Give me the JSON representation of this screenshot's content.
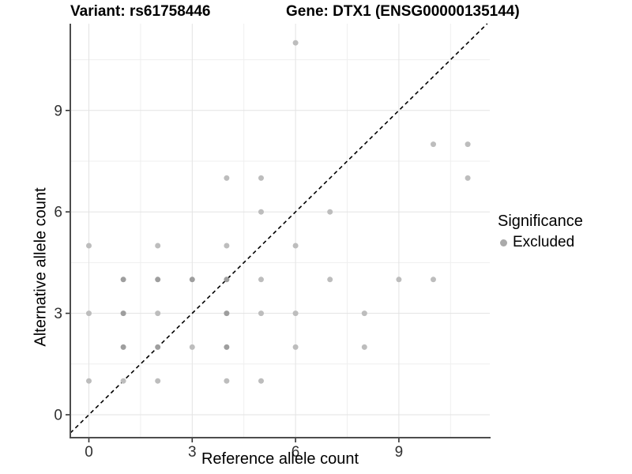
{
  "chart_data": {
    "type": "scatter",
    "title_left": "Variant: rs61758446",
    "title_right": "Gene: DTX1 (ENSG00000135144)",
    "xlabel": "Reference allele count",
    "ylabel": "Alternative allele count",
    "x_ticks": [
      0,
      3,
      6,
      9
    ],
    "y_ticks": [
      0,
      3,
      6,
      9
    ],
    "x_minor_gridlines": [
      1.5,
      4.5,
      7.5,
      10.5
    ],
    "y_minor_gridlines": [
      1.5,
      4.5,
      7.5,
      10.5
    ],
    "xlim": [
      -0.55,
      11.65
    ],
    "ylim": [
      -0.65,
      11.57
    ],
    "grid": "on",
    "legend_position": "right-center",
    "reference_line": {
      "style": "dashed",
      "slope": 1,
      "intercept": 0,
      "color": "#000000"
    },
    "legend": {
      "title": "Significance",
      "items": [
        {
          "label": "Excluded",
          "color": "#aaaaaa"
        }
      ]
    },
    "point_colors": {
      "light": "#bdbdbd",
      "dark": "#9e9e9e"
    },
    "points": [
      {
        "x": 0,
        "y": 1,
        "shade": "light"
      },
      {
        "x": 1,
        "y": 1,
        "shade": "light"
      },
      {
        "x": 2,
        "y": 1,
        "shade": "light"
      },
      {
        "x": 4,
        "y": 1,
        "shade": "light"
      },
      {
        "x": 5,
        "y": 1,
        "shade": "light"
      },
      {
        "x": 1,
        "y": 2,
        "shade": "dark"
      },
      {
        "x": 2,
        "y": 2,
        "shade": "dark"
      },
      {
        "x": 3,
        "y": 2,
        "shade": "light"
      },
      {
        "x": 4,
        "y": 2,
        "shade": "dark"
      },
      {
        "x": 6,
        "y": 2,
        "shade": "light"
      },
      {
        "x": 8,
        "y": 2,
        "shade": "light"
      },
      {
        "x": 0,
        "y": 3,
        "shade": "light"
      },
      {
        "x": 1,
        "y": 3,
        "shade": "dark"
      },
      {
        "x": 2,
        "y": 3,
        "shade": "light"
      },
      {
        "x": 4,
        "y": 3,
        "shade": "dark"
      },
      {
        "x": 5,
        "y": 3,
        "shade": "light"
      },
      {
        "x": 6,
        "y": 3,
        "shade": "light"
      },
      {
        "x": 8,
        "y": 3,
        "shade": "light"
      },
      {
        "x": 1,
        "y": 4,
        "shade": "dark"
      },
      {
        "x": 2,
        "y": 4,
        "shade": "dark"
      },
      {
        "x": 3,
        "y": 4,
        "shade": "dark"
      },
      {
        "x": 4,
        "y": 4,
        "shade": "dark"
      },
      {
        "x": 5,
        "y": 4,
        "shade": "light"
      },
      {
        "x": 7,
        "y": 4,
        "shade": "light"
      },
      {
        "x": 9,
        "y": 4,
        "shade": "light"
      },
      {
        "x": 10,
        "y": 4,
        "shade": "light"
      },
      {
        "x": 0,
        "y": 5,
        "shade": "light"
      },
      {
        "x": 2,
        "y": 5,
        "shade": "light"
      },
      {
        "x": 4,
        "y": 5,
        "shade": "light"
      },
      {
        "x": 6,
        "y": 5,
        "shade": "light"
      },
      {
        "x": 5,
        "y": 6,
        "shade": "light"
      },
      {
        "x": 7,
        "y": 6,
        "shade": "light"
      },
      {
        "x": 4,
        "y": 7,
        "shade": "light"
      },
      {
        "x": 5,
        "y": 7,
        "shade": "light"
      },
      {
        "x": 11,
        "y": 7,
        "shade": "light"
      },
      {
        "x": 10,
        "y": 8,
        "shade": "light"
      },
      {
        "x": 11,
        "y": 8,
        "shade": "light"
      },
      {
        "x": 6,
        "y": 11,
        "shade": "light"
      }
    ],
    "colors": {
      "axis_line": "#4d4d4d",
      "tick_mark": "#333333",
      "tick_label": "#303030",
      "major_grid": "#e3e3e3",
      "minor_grid": "#efefef",
      "background": "#ffffff"
    }
  }
}
